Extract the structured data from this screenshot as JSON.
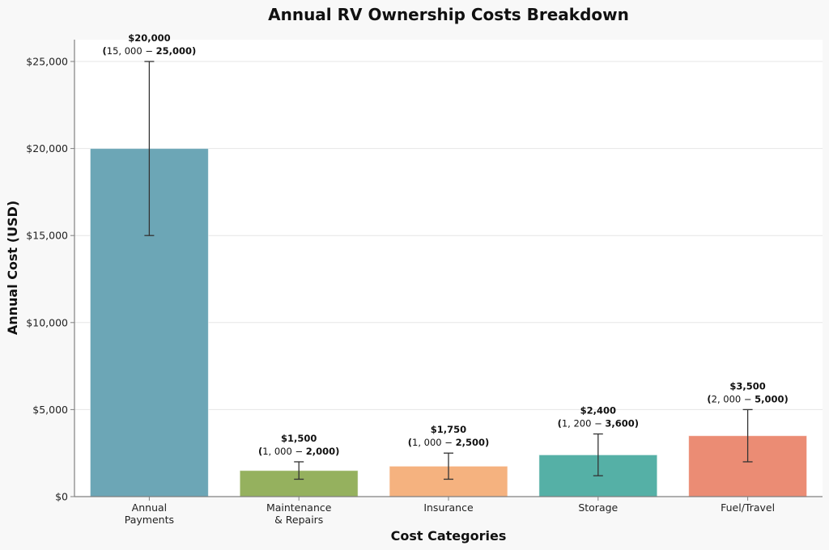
{
  "chart_data": {
    "type": "bar",
    "title": "Annual RV Ownership Costs Breakdown",
    "xlabel": "Cost Categories",
    "ylabel": "Annual Cost (USD)",
    "ylim": [
      0,
      26300
    ],
    "yticks": [
      0,
      5000,
      10000,
      15000,
      20000,
      25000
    ],
    "ytick_labels": [
      "$0",
      "$5,000",
      "$10,000",
      "$15,000",
      "$20,000",
      "$25,000"
    ],
    "grid": "y",
    "legend": "none",
    "categories": [
      "Annual\nPayments",
      "Maintenance\n& Repairs",
      "Insurance",
      "Storage",
      "Fuel/Travel"
    ],
    "values": [
      20000,
      1500,
      1750,
      2400,
      3500
    ],
    "ranges": [
      [
        15000,
        25000
      ],
      [
        1000,
        2000
      ],
      [
        1000,
        2500
      ],
      [
        1200,
        3600
      ],
      [
        2000,
        5000
      ]
    ],
    "value_labels": [
      "$20,000",
      "$1,500",
      "$1,750",
      "$2,400",
      "$3,500"
    ],
    "range_labels": [
      {
        "low": "15,000",
        "high": "25,000"
      },
      {
        "low": "1,000",
        "high": "2,000"
      },
      {
        "low": "1,000",
        "high": "2,500"
      },
      {
        "low": "1,200",
        "high": "3,600"
      },
      {
        "low": "2,000",
        "high": "5,000"
      }
    ],
    "colors": [
      "#6ca6b6",
      "#95b15e",
      "#f5b27f",
      "#55b0a6",
      "#eb8c74"
    ]
  }
}
